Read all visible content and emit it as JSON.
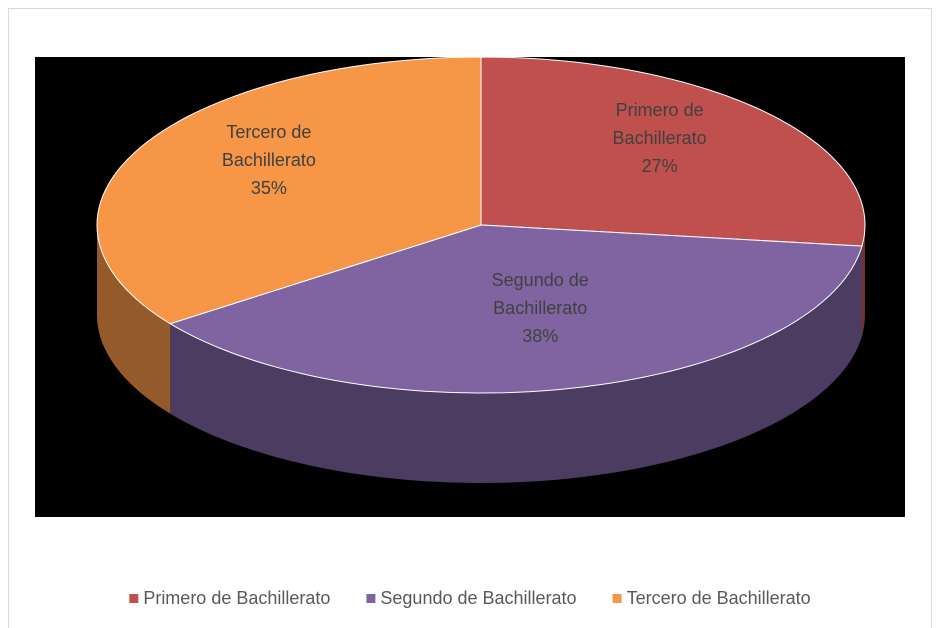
{
  "chart_data": {
    "type": "pie3d",
    "categories": [
      "Primero de Bachillerato",
      "Segundo de Bachillerato",
      "Tercero de Bachillerato"
    ],
    "values": [
      27,
      38,
      35
    ],
    "value_labels": [
      "27%",
      "38%",
      "35%"
    ],
    "colors": [
      "#c0504d",
      "#8064a2",
      "#f79646"
    ],
    "legend": "bottom"
  }
}
